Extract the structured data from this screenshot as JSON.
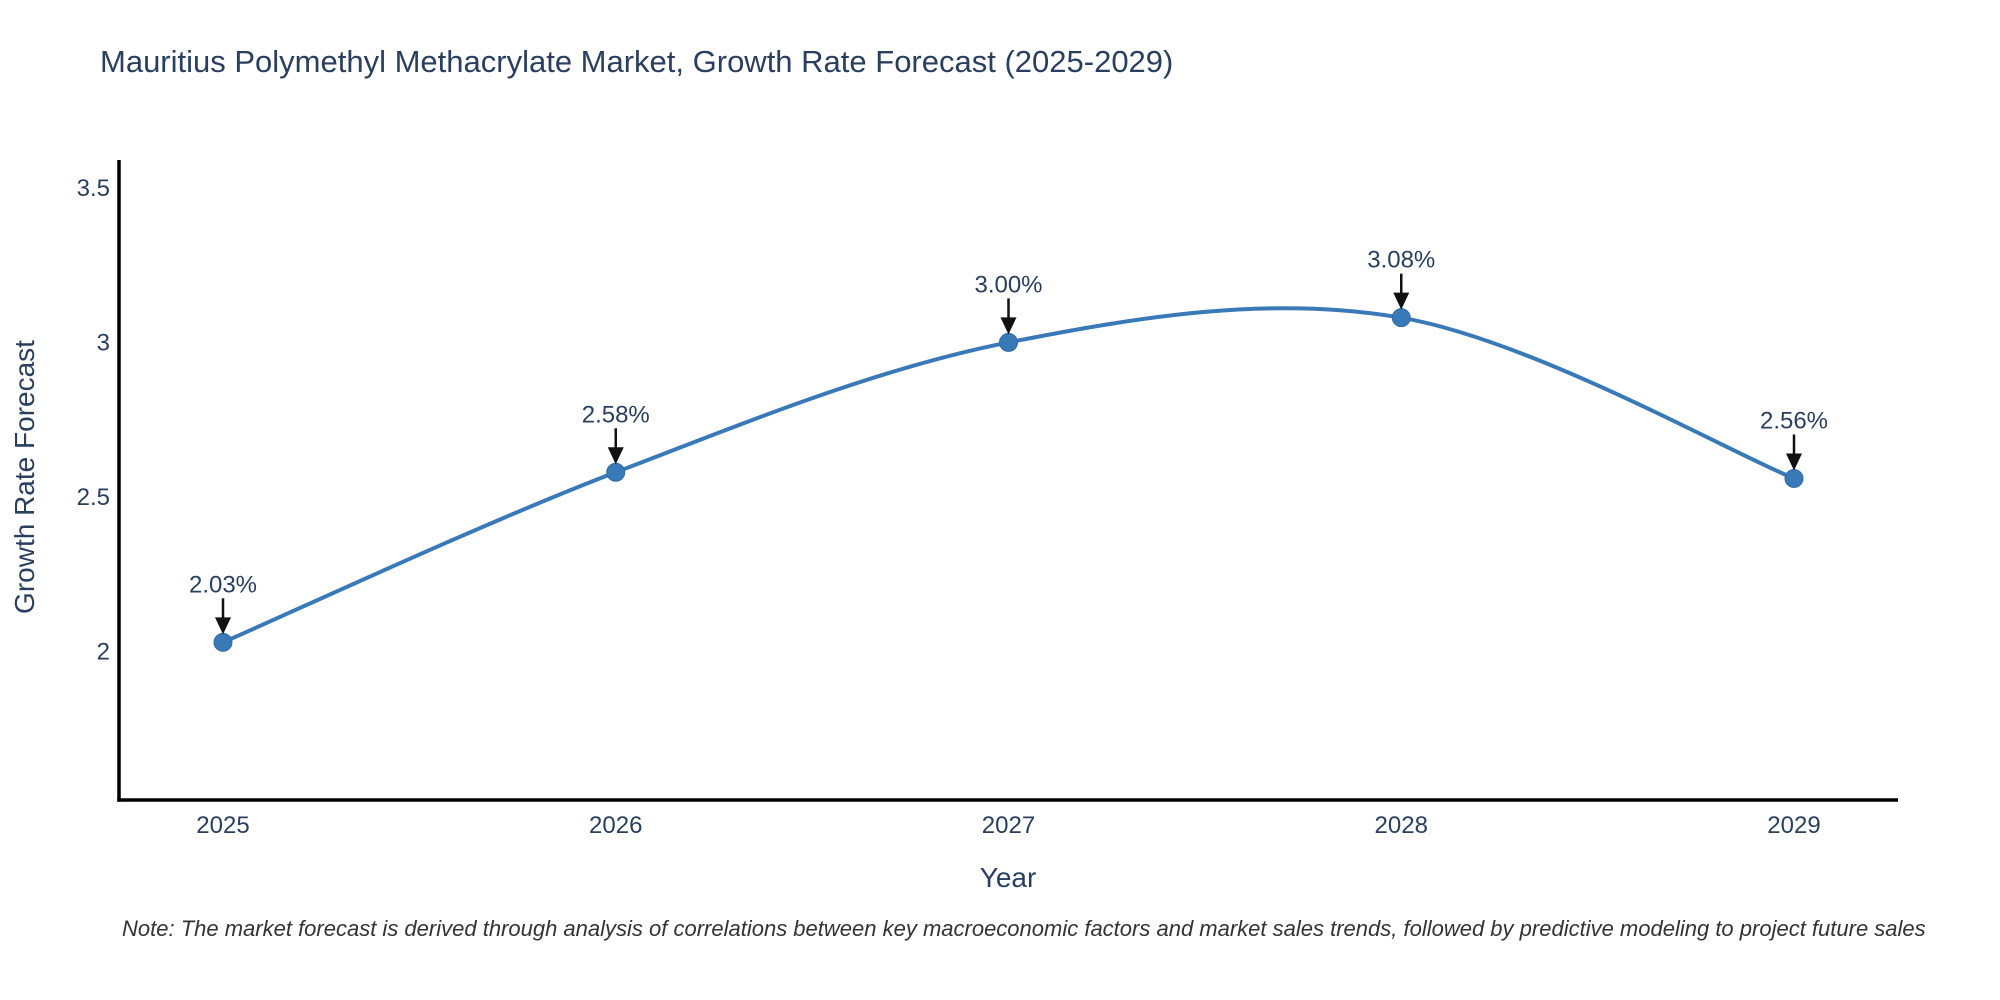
{
  "title": "Mauritius Polymethyl Methacrylate Market, Growth Rate Forecast (2025-2029)",
  "footnote": "Note: The market forecast is derived through analysis of correlations between key macroeconomic factors and market sales trends, followed by predictive modeling to project future sales",
  "colors": {
    "line": "#3a79b8",
    "marker": "#3a79b8",
    "marker_edge": "#2e6da4",
    "axis": "#000000",
    "text": "#2a3f5f",
    "arrow": "#111111",
    "note": "#333333",
    "background": "#ffffff"
  },
  "chart_data": {
    "type": "line",
    "line_shape": "spline",
    "title": "Mauritius Polymethyl Methacrylate Market, Growth Rate Forecast (2025-2029)",
    "xlabel": "Year",
    "ylabel": "Growth Rate Forecast",
    "categories": [
      "2025",
      "2026",
      "2027",
      "2028",
      "2029"
    ],
    "x": [
      2025,
      2026,
      2027,
      2028,
      2029
    ],
    "series": [
      {
        "name": "Growth Rate Forecast",
        "values": [
          2.03,
          2.58,
          3.0,
          3.08,
          2.56
        ]
      }
    ],
    "point_labels": [
      "2.03%",
      "2.58%",
      "3.00%",
      "3.08%",
      "2.56%"
    ],
    "yticks": [
      2,
      2.5,
      3,
      3.5
    ],
    "ytick_labels": [
      "2",
      "2.5",
      "3",
      "3.5"
    ],
    "ylim": [
      1.52,
      3.59
    ],
    "grid": false,
    "legend": "none"
  }
}
